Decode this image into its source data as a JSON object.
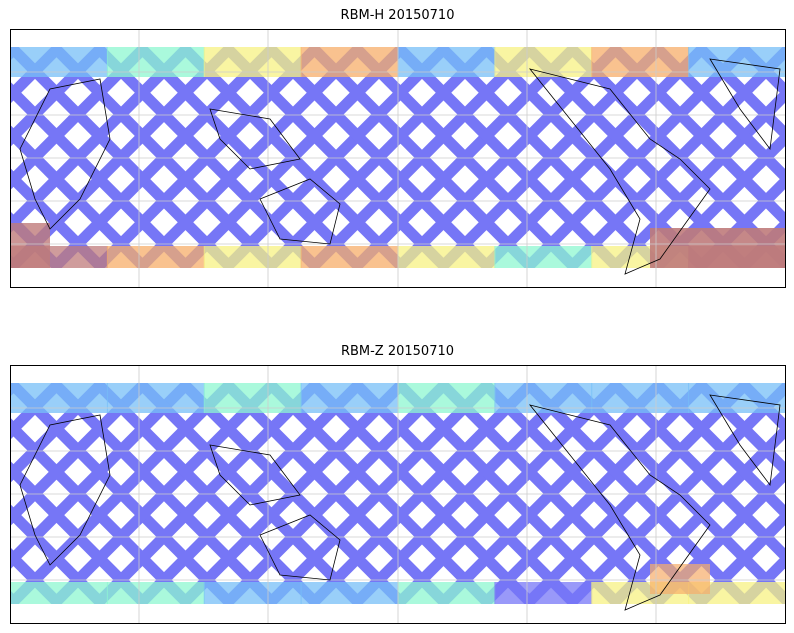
{
  "panels": [
    {
      "title": "RBM-H 20150710",
      "variable": "RBM-H",
      "date": "20150710"
    },
    {
      "title": "RBM-Z 20150710",
      "variable": "RBM-Z",
      "date": "20150710"
    }
  ],
  "colors": {
    "low": "#5f5ff5",
    "mid_low": "#5fb4f5",
    "mid": "#7af5c8",
    "mid_high": "#f5f06e",
    "high": "#f5a050",
    "max": "#b46464",
    "land": "#000000",
    "grid": "#cccccc"
  }
}
